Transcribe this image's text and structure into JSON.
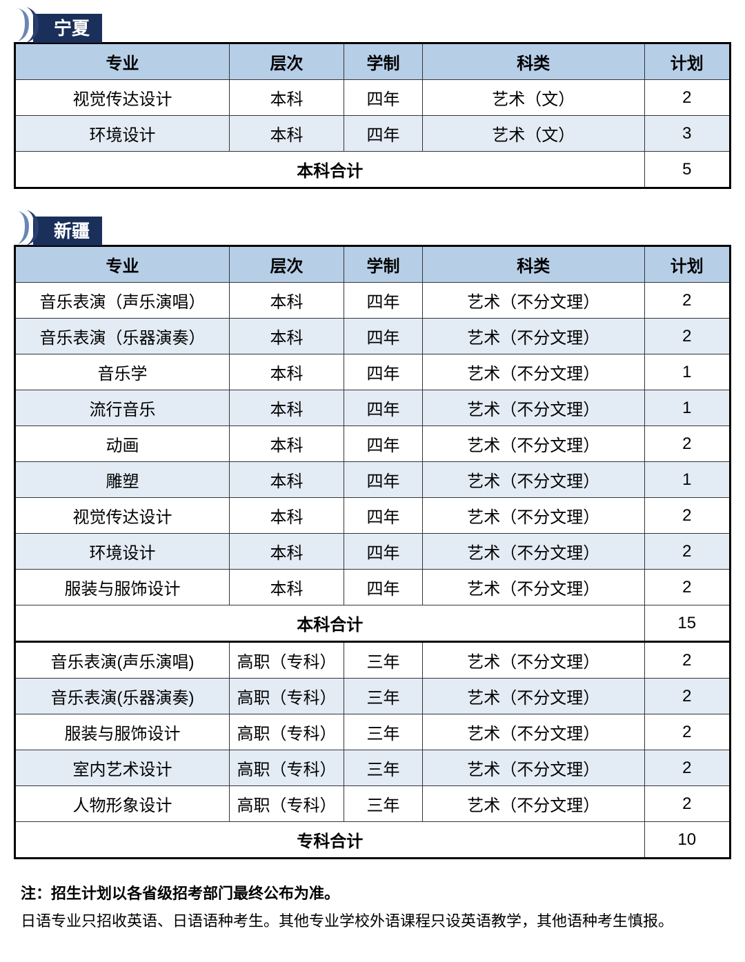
{
  "colors": {
    "tab_bg": "#1a2f5a",
    "tab_text": "#ffffff",
    "header_bg": "#b7cee7",
    "row_alt_bg": "#e3ecf5",
    "row_plain_bg": "#ffffff",
    "border": "#000000",
    "icon_dark": "#2a3f6f",
    "icon_light": "#6a87b3"
  },
  "columns": [
    "专业",
    "层次",
    "学制",
    "科类",
    "计划"
  ],
  "column_widths_pct": [
    30,
    16,
    11,
    31,
    12
  ],
  "sections": [
    {
      "title": "宁夏",
      "groups": [
        {
          "rows": [
            [
              "视觉传达设计",
              "本科",
              "四年",
              "艺术（文）",
              "2"
            ],
            [
              "环境设计",
              "本科",
              "四年",
              "艺术（文）",
              "3"
            ]
          ],
          "subtotal_label": "本科合计",
          "subtotal_value": "5"
        }
      ]
    },
    {
      "title": "新疆",
      "groups": [
        {
          "rows": [
            [
              "音乐表演（声乐演唱）",
              "本科",
              "四年",
              "艺术（不分文理）",
              "2"
            ],
            [
              "音乐表演（乐器演奏）",
              "本科",
              "四年",
              "艺术（不分文理）",
              "2"
            ],
            [
              "音乐学",
              "本科",
              "四年",
              "艺术（不分文理）",
              "1"
            ],
            [
              "流行音乐",
              "本科",
              "四年",
              "艺术（不分文理）",
              "1"
            ],
            [
              "动画",
              "本科",
              "四年",
              "艺术（不分文理）",
              "2"
            ],
            [
              "雕塑",
              "本科",
              "四年",
              "艺术（不分文理）",
              "1"
            ],
            [
              "视觉传达设计",
              "本科",
              "四年",
              "艺术（不分文理）",
              "2"
            ],
            [
              "环境设计",
              "本科",
              "四年",
              "艺术（不分文理）",
              "2"
            ],
            [
              "服装与服饰设计",
              "本科",
              "四年",
              "艺术（不分文理）",
              "2"
            ]
          ],
          "subtotal_label": "本科合计",
          "subtotal_value": "15"
        },
        {
          "rows": [
            [
              "音乐表演(声乐演唱)",
              "高职（专科）",
              "三年",
              "艺术（不分文理）",
              "2"
            ],
            [
              "音乐表演(乐器演奏)",
              "高职（专科）",
              "三年",
              "艺术（不分文理）",
              "2"
            ],
            [
              "服装与服饰设计",
              "高职（专科）",
              "三年",
              "艺术（不分文理）",
              "2"
            ],
            [
              "室内艺术设计",
              "高职（专科）",
              "三年",
              "艺术（不分文理）",
              "2"
            ],
            [
              "人物形象设计",
              "高职（专科）",
              "三年",
              "艺术（不分文理）",
              "2"
            ]
          ],
          "subtotal_label": "专科合计",
          "subtotal_value": "10"
        }
      ]
    }
  ],
  "footer": {
    "line1": "注：招生计划以各省级招考部门最终公布为准。",
    "line2": "日语专业只招收英语、日语语种考生。其他专业学校外语课程只设英语教学，其他语种考生慎报。"
  }
}
